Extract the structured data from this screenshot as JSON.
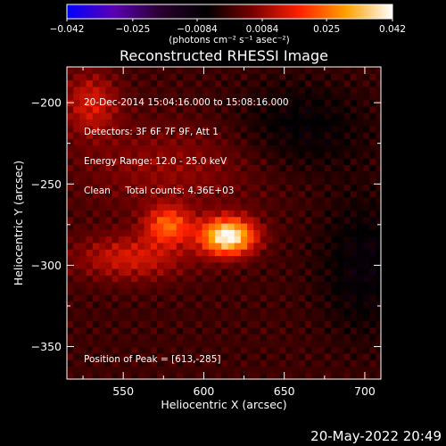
{
  "colorbar": {
    "tick_labels": [
      "−0.042",
      "−0.025",
      "−0.0084",
      "0.0084",
      "0.025",
      "0.042"
    ],
    "ticks": [
      -0.042,
      -0.025,
      -0.0084,
      0.0084,
      0.025,
      0.042
    ],
    "range": [
      -0.042,
      0.042
    ],
    "units_label": "(photons cm⁻² s⁻¹ asec⁻²)",
    "colors": [
      "#0000ff",
      "#5a00b4",
      "#2a0030",
      "#000000",
      "#7a0000",
      "#ff2000",
      "#ffa000",
      "#ffffff"
    ]
  },
  "chart_data": {
    "type": "heatmap",
    "title": "Reconstructed RHESSI Image",
    "xlabel": "Heliocentric X (arcsec)",
    "ylabel": "Heliocentric Y (arcsec)",
    "xlim": [
      515,
      710
    ],
    "ylim": [
      -370,
      -178
    ],
    "xticks": [
      550,
      600,
      650,
      700
    ],
    "yticks": [
      -200,
      -250,
      -300,
      -350
    ],
    "xtick_labels": [
      "550",
      "600",
      "650",
      "700"
    ],
    "ytick_labels": [
      "−200",
      "−250",
      "−300",
      "−350"
    ],
    "info_lines": [
      "20-Dec-2014 15:04:16.000 to 15:08:16.000",
      "Detectors: 3F 6F 7F 9F, Att 1",
      "Energy Range: 12.0 - 25.0 keV",
      "Clean     Total counts: 4.36E+03"
    ],
    "peak_label": "Position of Peak = [613,-285]",
    "peak": [
      613,
      -285
    ],
    "sources": [
      {
        "x": 615,
        "y": -282,
        "amplitude": 0.042,
        "sx": 12,
        "sy": 8
      },
      {
        "x": 578,
        "y": -275,
        "amplitude": 0.022,
        "sx": 10,
        "sy": 8
      },
      {
        "x": 555,
        "y": -295,
        "amplitude": 0.014,
        "sx": 25,
        "sy": 10
      },
      {
        "x": 530,
        "y": -200,
        "amplitude": 0.014,
        "sx": 12,
        "sy": 14
      },
      {
        "x": 580,
        "y": -240,
        "amplitude": 0.008,
        "sx": 40,
        "sy": 20
      },
      {
        "x": 700,
        "y": -300,
        "amplitude": -0.008,
        "sx": 20,
        "sy": 30
      },
      {
        "x": 660,
        "y": -215,
        "amplitude": -0.007,
        "sx": 30,
        "sy": 20
      }
    ],
    "grid": false
  },
  "footer": {
    "date": "20-May-2022 20:49"
  }
}
